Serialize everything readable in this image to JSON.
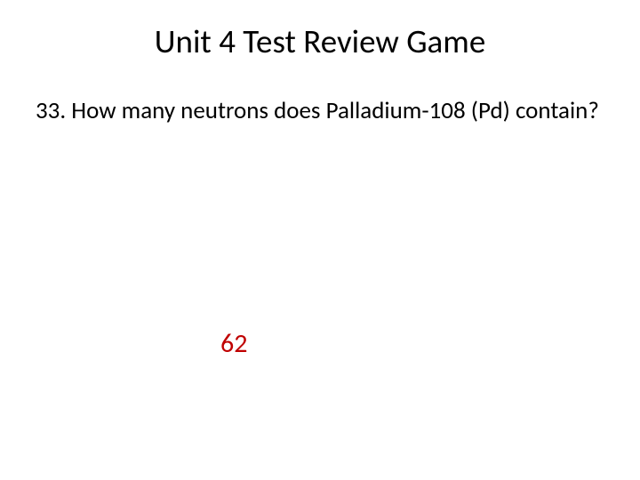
{
  "slide": {
    "title": "Unit 4 Test Review Game",
    "question": "33. How many neutrons does Palladium-108 (Pd) contain?",
    "answer": "62"
  },
  "style": {
    "title_fontsize": 37,
    "title_fontweight": "400",
    "title_color": "#000000",
    "question_fontsize": 27,
    "question_fontweight": "400",
    "question_color": "#000000",
    "answer_fontsize": 30,
    "answer_fontweight": "400",
    "answer_color": "#c00000",
    "background_color": "#ffffff"
  }
}
